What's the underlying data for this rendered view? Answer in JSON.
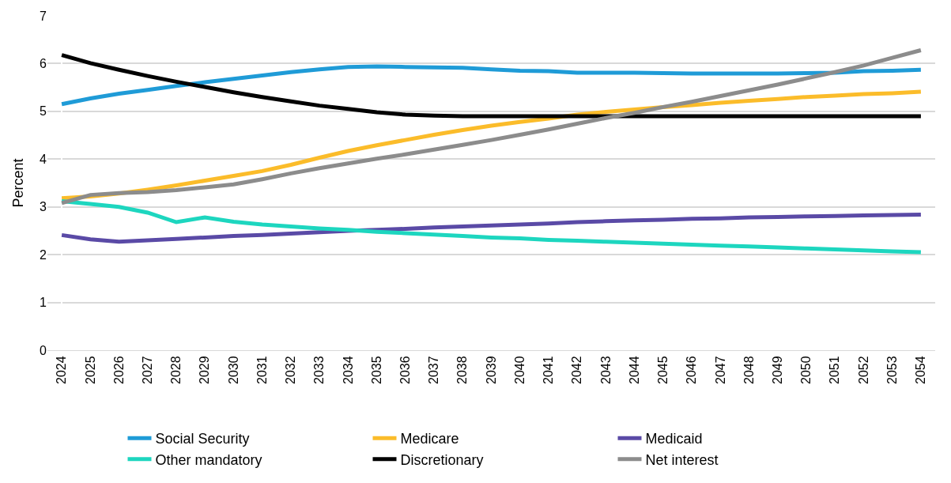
{
  "chart_data": {
    "type": "line",
    "ylabel": "Percent",
    "categories": [
      "2024",
      "2025",
      "2026",
      "2027",
      "2028",
      "2029",
      "2030",
      "2031",
      "2032",
      "2033",
      "2034",
      "2035",
      "2036",
      "2037",
      "2038",
      "2039",
      "2040",
      "2041",
      "2042",
      "2043",
      "2044",
      "2045",
      "2046",
      "2047",
      "2048",
      "2049",
      "2050",
      "2051",
      "2052",
      "2053",
      "2054"
    ],
    "series": [
      {
        "name": "Social Security",
        "color": "#1f9bd7",
        "values": [
          5.15,
          5.27,
          5.37,
          5.45,
          5.53,
          5.61,
          5.68,
          5.75,
          5.82,
          5.88,
          5.93,
          5.94,
          5.93,
          5.92,
          5.91,
          5.88,
          5.85,
          5.84,
          5.81,
          5.81,
          5.81,
          5.8,
          5.79,
          5.79,
          5.79,
          5.79,
          5.8,
          5.81,
          5.84,
          5.85,
          5.87
        ]
      },
      {
        "name": "Medicare",
        "color": "#fbbc2a",
        "values": [
          3.18,
          3.22,
          3.28,
          3.36,
          3.45,
          3.55,
          3.65,
          3.75,
          3.88,
          4.03,
          4.17,
          4.29,
          4.4,
          4.51,
          4.61,
          4.7,
          4.78,
          4.85,
          4.93,
          4.99,
          5.04,
          5.09,
          5.13,
          5.18,
          5.22,
          5.26,
          5.3,
          5.33,
          5.36,
          5.38,
          5.41
        ]
      },
      {
        "name": "Medicaid",
        "color": "#5a4aa6",
        "values": [
          2.41,
          2.32,
          2.27,
          2.3,
          2.33,
          2.36,
          2.39,
          2.41,
          2.44,
          2.47,
          2.5,
          2.52,
          2.54,
          2.57,
          2.59,
          2.61,
          2.63,
          2.65,
          2.68,
          2.7,
          2.72,
          2.73,
          2.75,
          2.76,
          2.78,
          2.79,
          2.8,
          2.81,
          2.82,
          2.83,
          2.84
        ]
      },
      {
        "name": "Other mandatory",
        "color": "#1dd6bf",
        "values": [
          3.12,
          3.06,
          3.0,
          2.88,
          2.68,
          2.78,
          2.69,
          2.63,
          2.59,
          2.55,
          2.52,
          2.48,
          2.45,
          2.42,
          2.39,
          2.36,
          2.34,
          2.31,
          2.29,
          2.27,
          2.25,
          2.23,
          2.21,
          2.19,
          2.17,
          2.15,
          2.13,
          2.11,
          2.09,
          2.07,
          2.05
        ]
      },
      {
        "name": "Discretionary",
        "color": "#000000",
        "values": [
          6.18,
          6.01,
          5.87,
          5.74,
          5.62,
          5.51,
          5.4,
          5.3,
          5.21,
          5.12,
          5.05,
          4.98,
          4.93,
          4.91,
          4.9,
          4.9,
          4.9,
          4.9,
          4.9,
          4.9,
          4.9,
          4.9,
          4.9,
          4.9,
          4.9,
          4.9,
          4.9,
          4.9,
          4.9,
          4.9,
          4.9
        ]
      },
      {
        "name": "Net interest",
        "color": "#8c8c8c",
        "values": [
          3.08,
          3.25,
          3.29,
          3.31,
          3.35,
          3.41,
          3.47,
          3.58,
          3.7,
          3.81,
          3.91,
          4.01,
          4.1,
          4.2,
          4.3,
          4.4,
          4.51,
          4.62,
          4.74,
          4.86,
          4.97,
          5.09,
          5.2,
          5.32,
          5.44,
          5.56,
          5.69,
          5.82,
          5.96,
          6.12,
          6.28
        ]
      }
    ],
    "ylim": [
      0,
      7
    ],
    "yticks": [
      0,
      1,
      2,
      3,
      4,
      5,
      6,
      7
    ],
    "grid": "y",
    "legend": "bottom",
    "marker": "none",
    "line_style": "solid"
  }
}
